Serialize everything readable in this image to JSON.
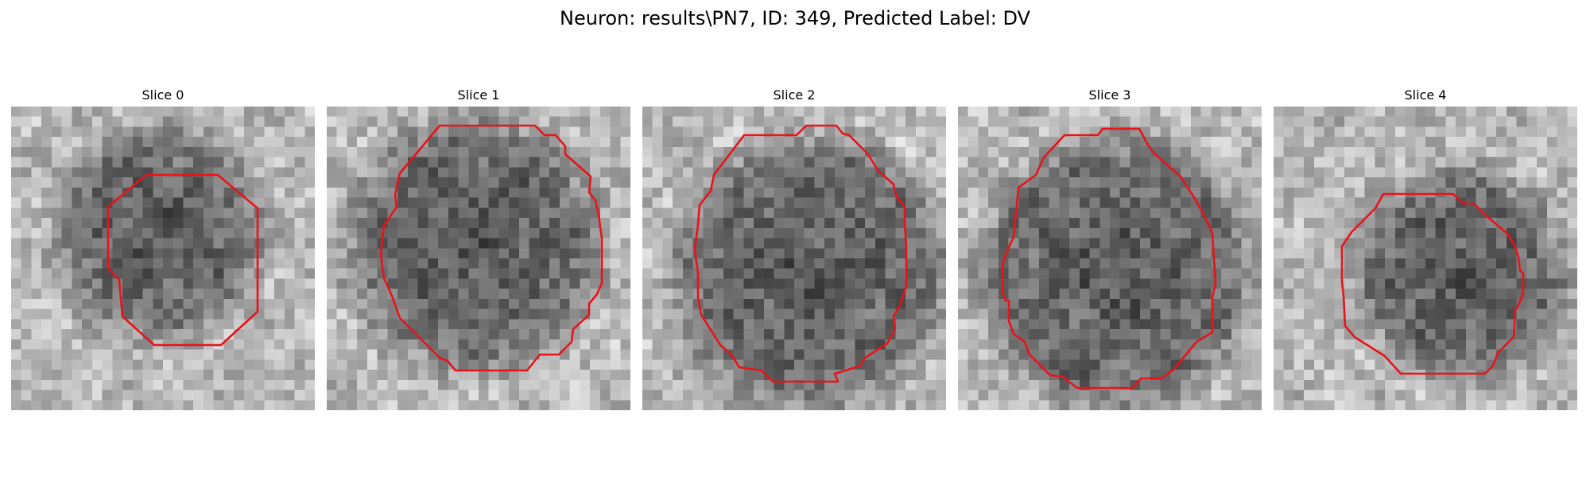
{
  "figure": {
    "suptitle": "Neuron: results\\PN7, ID: 349, Predicted Label: DV",
    "contour_color": "#e8131b",
    "colormap": "gray",
    "slices": [
      {
        "title": "Slice 0"
      },
      {
        "title": "Slice 1"
      },
      {
        "title": "Slice 2"
      },
      {
        "title": "Slice 3"
      },
      {
        "title": "Slice 4"
      }
    ]
  }
}
